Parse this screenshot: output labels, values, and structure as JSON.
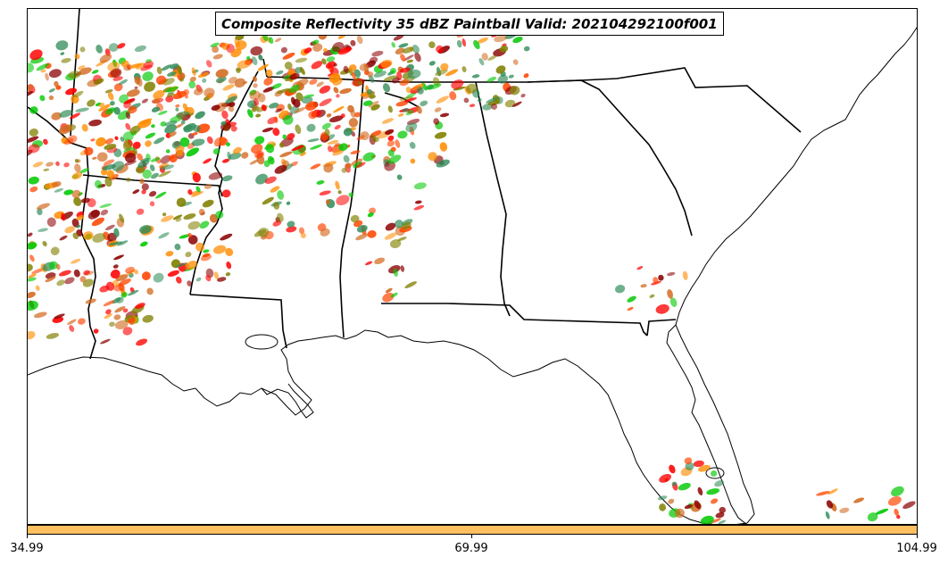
{
  "map": {
    "title": "Composite Reflectivity 35 dBZ Paintball Valid: 202104292100f001",
    "region": "Southeastern United States",
    "colors": {
      "state_lines": "#000000",
      "coastline": "#000000",
      "background": "#ffffff"
    },
    "member_colors": [
      "#ff0000",
      "#ff8c00",
      "#00c800",
      "#8b0000",
      "#808000",
      "#d2691e",
      "#2e8b57",
      "#ff4500"
    ]
  },
  "colorbar": {
    "fill_color": "#ffc060",
    "ticks": [
      "34.99",
      "69.99",
      "104.99"
    ]
  }
}
